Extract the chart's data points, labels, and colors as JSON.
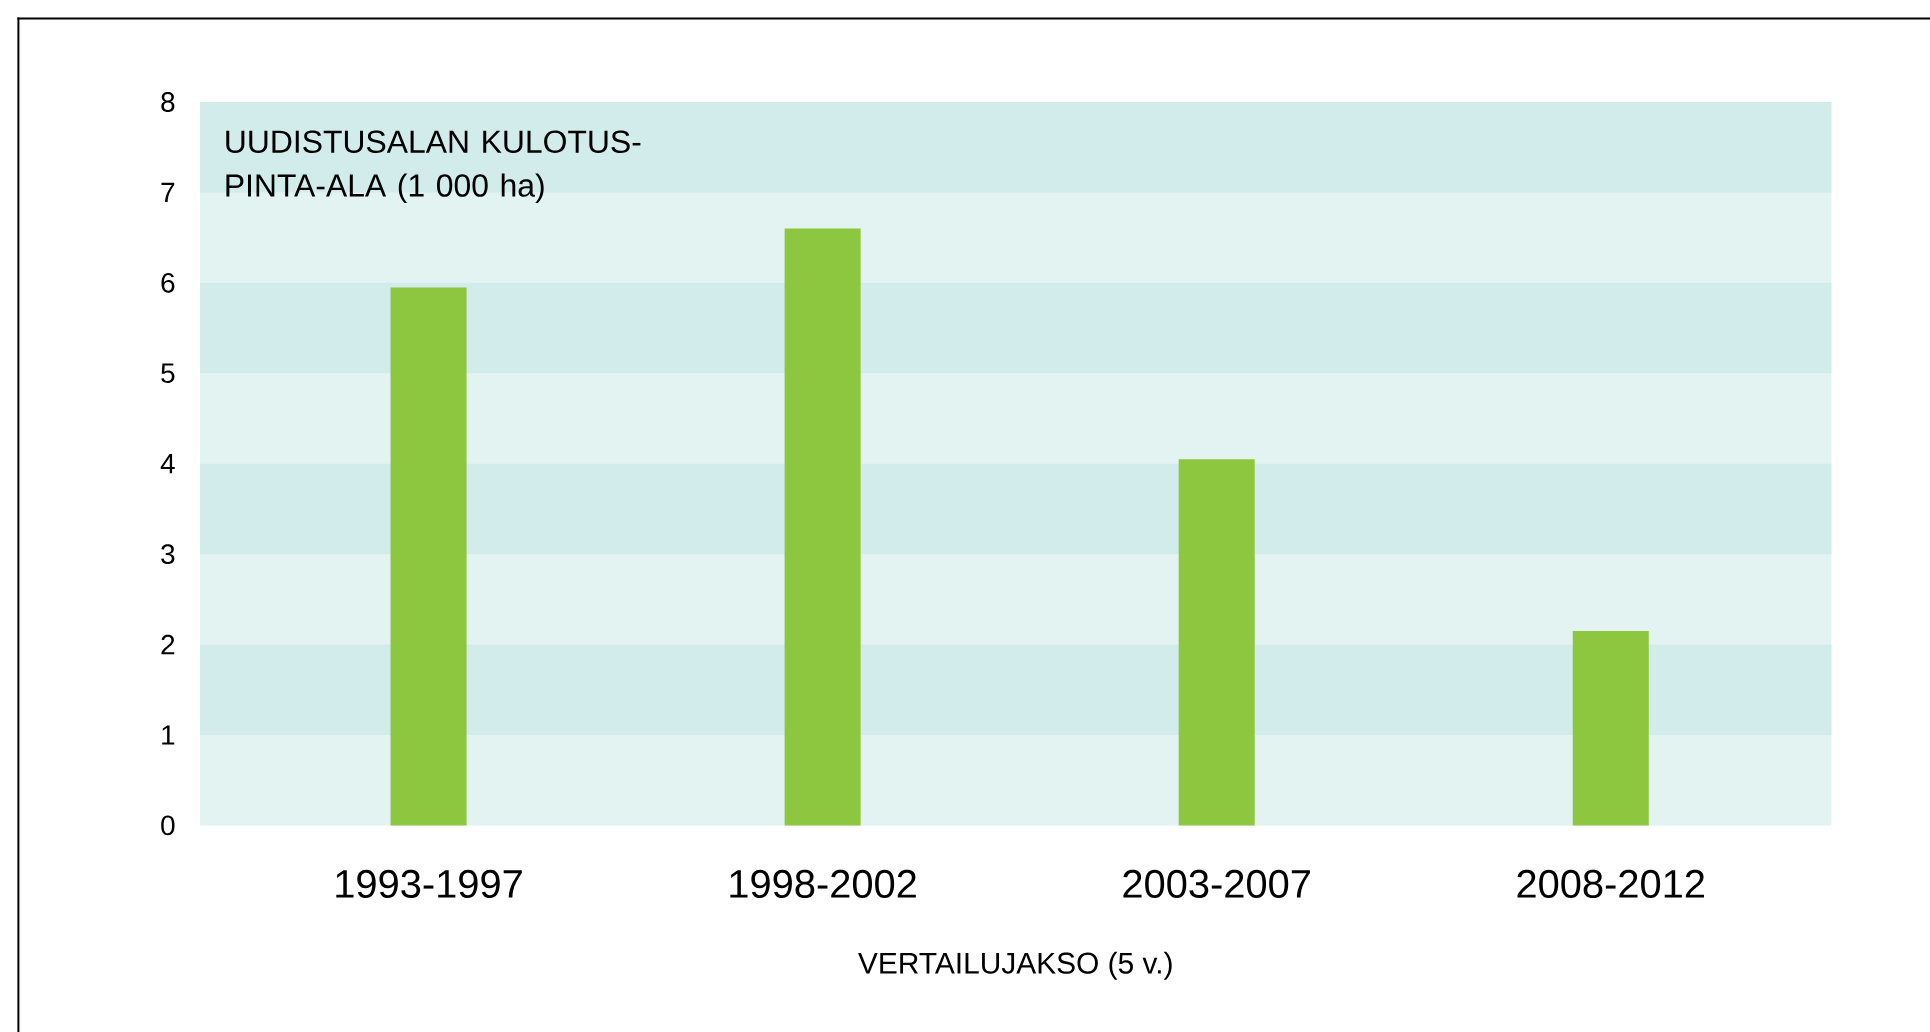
{
  "chart_data": {
    "type": "bar",
    "categories": [
      "1993-1997",
      "1998-2002",
      "2003-2007",
      "2008-2012"
    ],
    "values": [
      5.95,
      6.6,
      4.05,
      2.15
    ],
    "color": "#8dc63f",
    "ylabel": "UUDISTUSALAN KULOTUS-PINTA-ALA (1 000 ha)",
    "xlabel": "VERTAILUJAKSO (5 v.)",
    "ylim": [
      0,
      8
    ],
    "yticks": [
      0,
      1,
      2,
      3,
      4,
      5,
      6,
      7,
      8
    ],
    "bands": [
      {
        "axis": "y",
        "from": 1,
        "to": 2,
        "color": "#d2ebeb"
      },
      {
        "axis": "y",
        "from": 3,
        "to": 4,
        "color": "#d2ebeb"
      },
      {
        "axis": "y",
        "from": 5,
        "to": 6,
        "color": "#d2ebeb"
      },
      {
        "axis": "y",
        "from": 7,
        "to": 8,
        "color": "#d2ebeb"
      }
    ]
  }
}
